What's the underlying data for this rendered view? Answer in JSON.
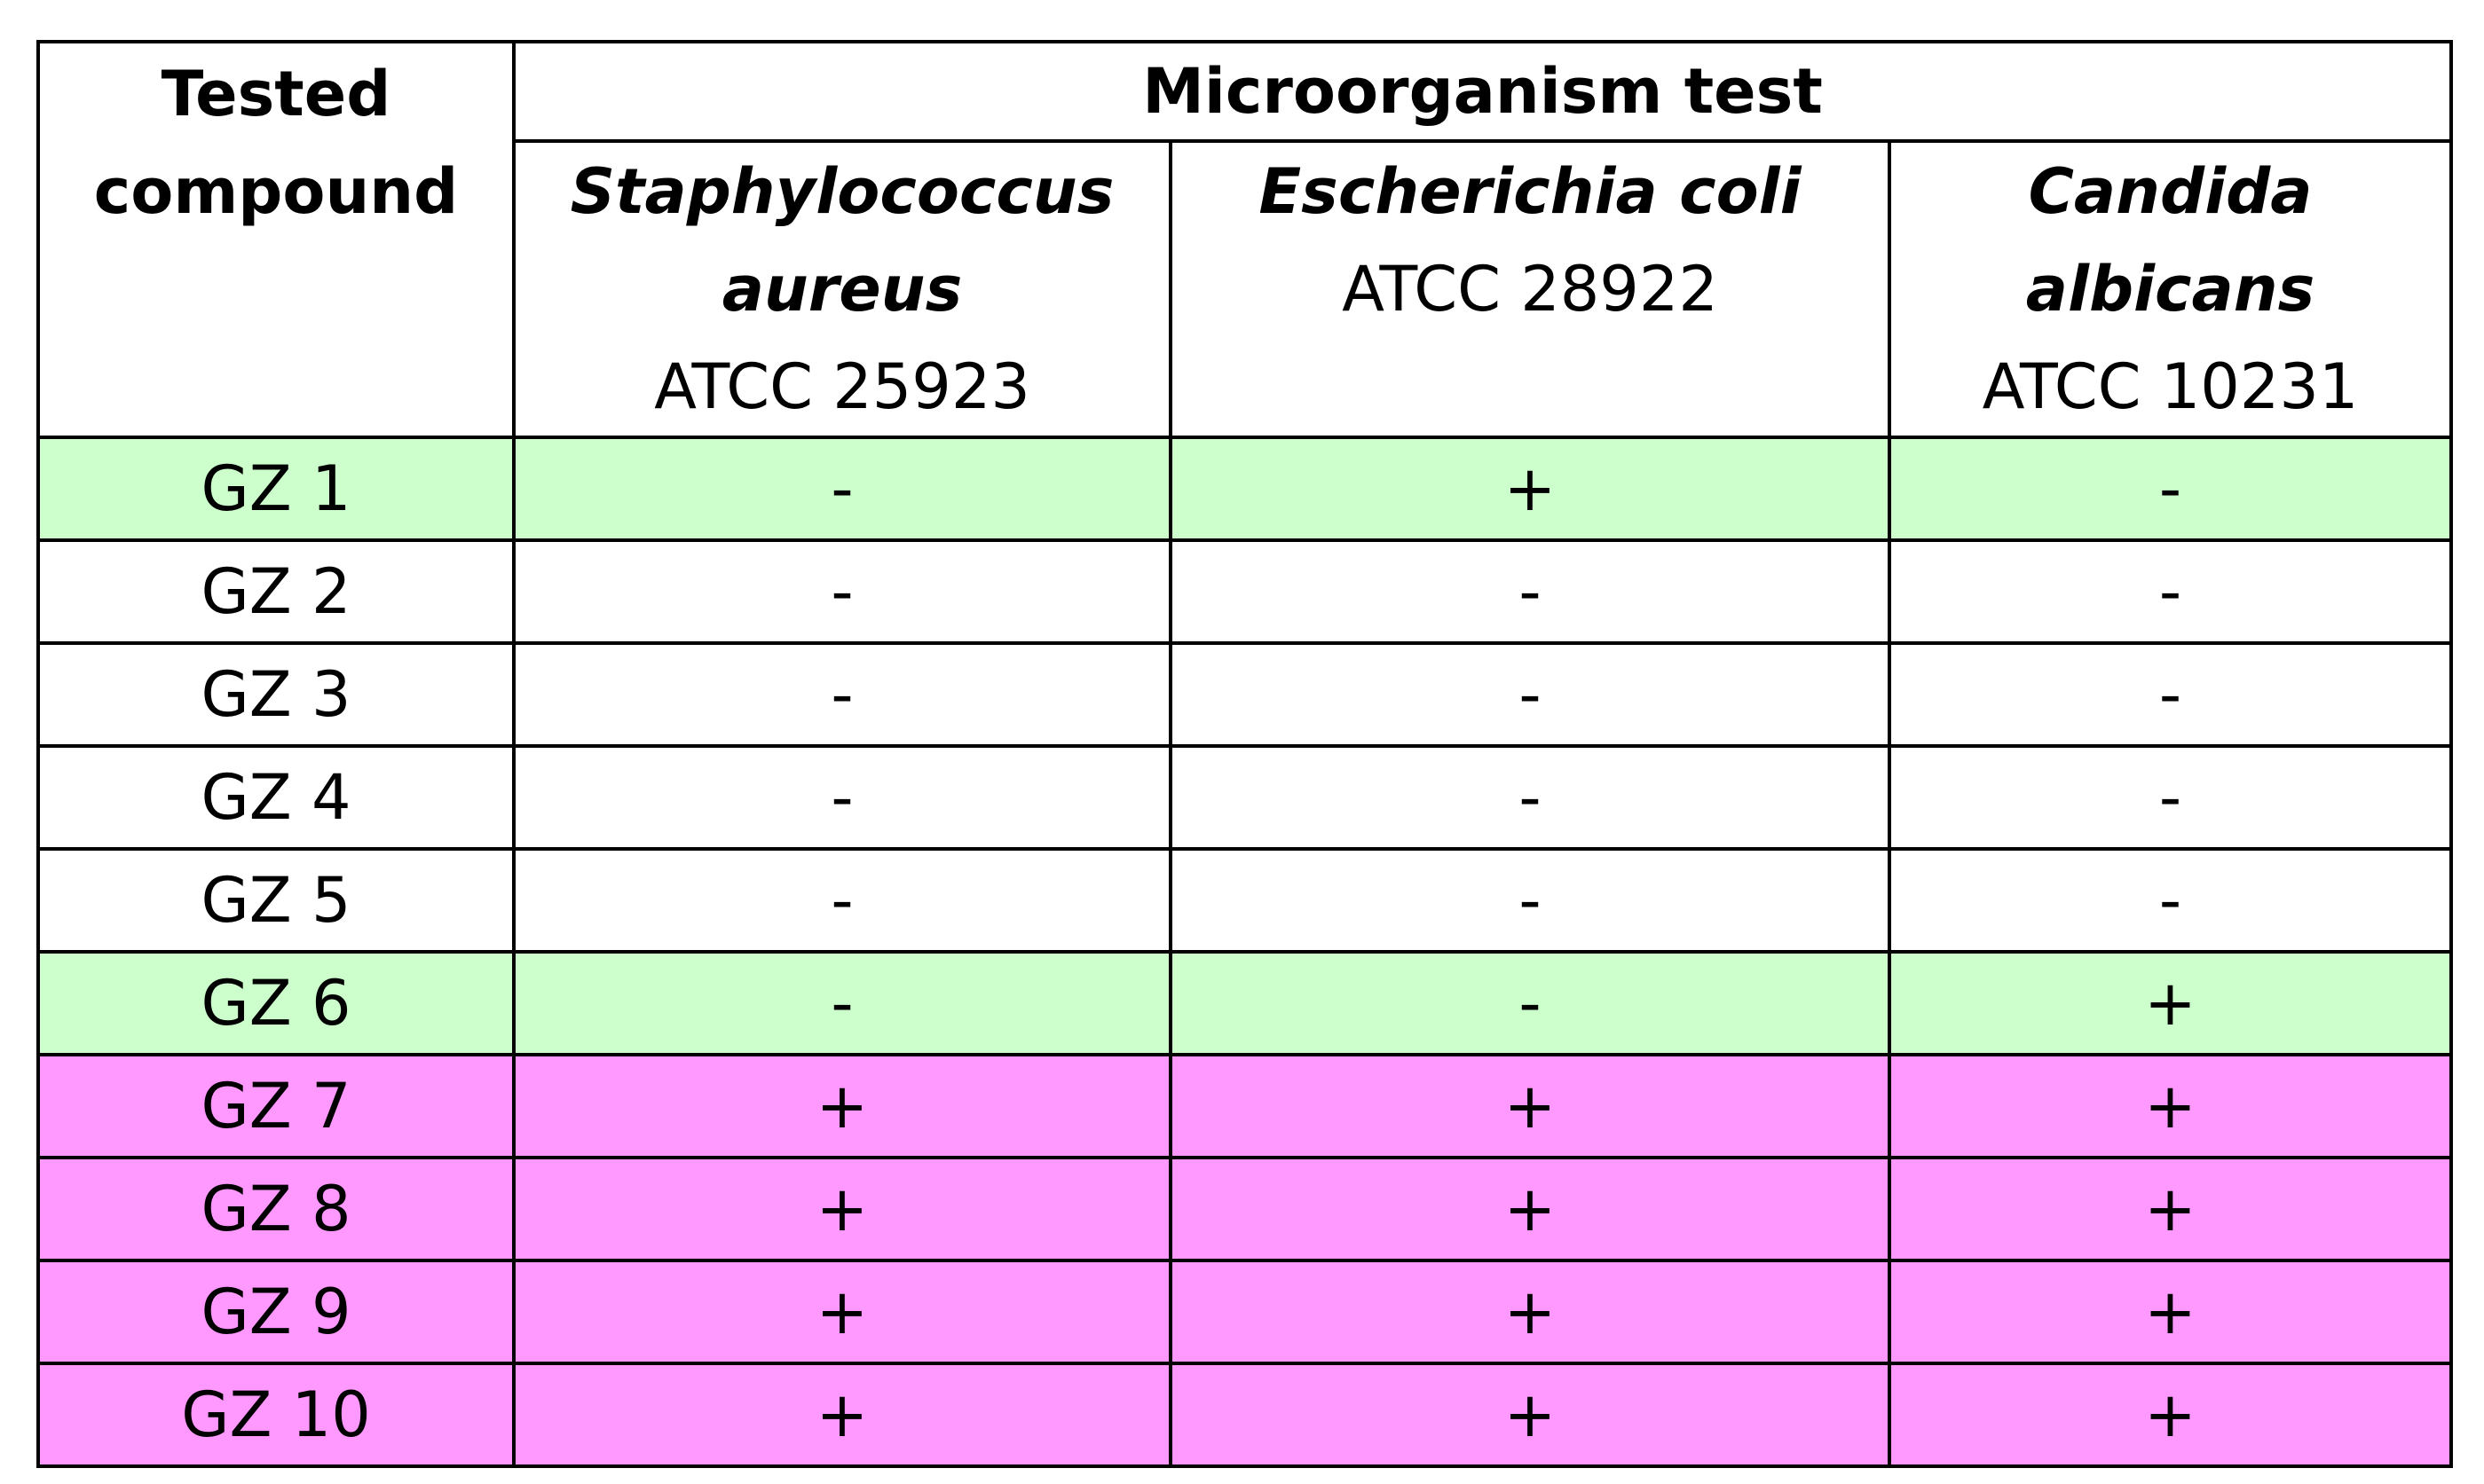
{
  "chart_data": {
    "type": "table",
    "header": {
      "compound_col": "Tested compound",
      "group": "Microorganism test",
      "organisms": [
        {
          "name": "Staphylococcus aureus",
          "strain": "ATCC 25923"
        },
        {
          "name": "Escherichia coli",
          "strain": "ATCC 28922"
        },
        {
          "name": "Candida albicans",
          "strain": "ATCC 10231"
        }
      ]
    },
    "rows": [
      {
        "compound": "GZ 1",
        "results": [
          "-",
          "+",
          "-"
        ],
        "color": "#ccffcc"
      },
      {
        "compound": "GZ 2",
        "results": [
          "-",
          "-",
          "-"
        ],
        "color": "#ffffff"
      },
      {
        "compound": "GZ 3",
        "results": [
          "-",
          "-",
          "-"
        ],
        "color": "#ffffff"
      },
      {
        "compound": "GZ 4",
        "results": [
          "-",
          "-",
          "-"
        ],
        "color": "#ffffff"
      },
      {
        "compound": "GZ 5",
        "results": [
          "-",
          "-",
          "-"
        ],
        "color": "#ffffff"
      },
      {
        "compound": "GZ 6",
        "results": [
          "-",
          "-",
          "+"
        ],
        "color": "#ccffcc"
      },
      {
        "compound": "GZ 7",
        "results": [
          "+",
          "+",
          "+"
        ],
        "color": "#ff99ff"
      },
      {
        "compound": "GZ 8",
        "results": [
          "+",
          "+",
          "+"
        ],
        "color": "#ff99ff"
      },
      {
        "compound": "GZ 9",
        "results": [
          "+",
          "+",
          "+"
        ],
        "color": "#ff99ff"
      },
      {
        "compound": "GZ 10",
        "results": [
          "+",
          "+",
          "+"
        ],
        "color": "#ff99ff"
      }
    ],
    "colors": {
      "border": "#000000",
      "highlight_single": "#ccffcc",
      "highlight_all": "#ff99ff"
    }
  }
}
